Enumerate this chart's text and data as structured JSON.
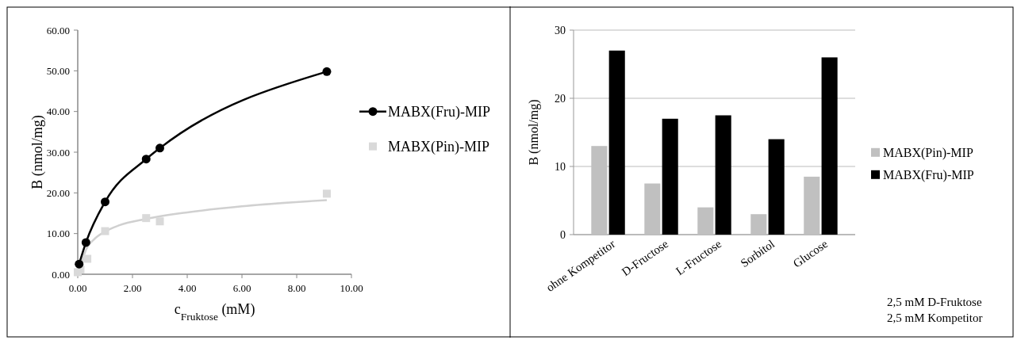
{
  "chart_data": [
    {
      "type": "scatter",
      "xlabel": "c$_{Fruktose}$ (mM)",
      "ylabel": "B (nmol/mg)",
      "xlim": [
        0,
        10
      ],
      "xticks": [
        {
          "value": 0,
          "label": "0.00"
        },
        {
          "value": 2,
          "label": "2.00"
        },
        {
          "value": 4,
          "label": "4.00"
        },
        {
          "value": 6,
          "label": "6.00"
        },
        {
          "value": 8,
          "label": "8.00"
        },
        {
          "value": 10,
          "label": "10.00"
        }
      ],
      "ylim": [
        0,
        60
      ],
      "yticks": [
        {
          "value": 0,
          "label": "0.00"
        },
        {
          "value": 10,
          "label": "10.00"
        },
        {
          "value": 20,
          "label": "20.00"
        },
        {
          "value": 30,
          "label": "30.00"
        },
        {
          "value": 40,
          "label": "40.00"
        },
        {
          "value": 50,
          "label": "50.00"
        },
        {
          "value": 60,
          "label": "60.00"
        }
      ],
      "grid": false,
      "legend": "right",
      "series": [
        {
          "name": "MABX(Fru)-MIP",
          "type": "line",
          "marker": "circle",
          "color": "#000000",
          "x": [
            0.05,
            0.3,
            1.0,
            2.5,
            3.0,
            9.1
          ],
          "values": [
            2.5,
            7.8,
            17.8,
            28.3,
            31.0,
            49.8
          ]
        },
        {
          "name": "MABX(Pin)-MIP",
          "type": "scatter",
          "marker": "square",
          "color": "#d9d9d9",
          "x": [
            0,
            0.1,
            0.35,
            1.0,
            2.5,
            3.0,
            9.1
          ],
          "values": [
            0.5,
            1.2,
            3.8,
            10.6,
            13.8,
            13.0,
            19.8
          ]
        },
        {
          "type": "line",
          "marker": "none",
          "color": "#d0d0d0",
          "x": [
            0.05,
            0.15,
            0.3,
            0.6,
            1.0,
            1.5,
            2.5,
            4.0,
            6.0,
            9.1
          ],
          "values": [
            0.2,
            3.0,
            6.0,
            8.6,
            10.5,
            12.0,
            13.6,
            15.2,
            16.7,
            18.2
          ]
        }
      ]
    },
    {
      "type": "bar",
      "ylabel": "B (nmol/mg)",
      "categories": [
        "ohne Kompetitor",
        "D-Fructose",
        "L-Fructose",
        "Sorbitol",
        "Glucose"
      ],
      "ylim": [
        0,
        30
      ],
      "yticks": [
        0,
        10,
        20,
        30
      ],
      "grid": "y",
      "legend": "right",
      "annotations": [
        "2,5 mM D-Fruktose",
        "2,5 mM Kompetitor"
      ],
      "series": [
        {
          "name": "MABX(Pin)-MIP",
          "color": "#c0c0c0",
          "values": [
            13,
            7.5,
            4,
            3,
            8.5
          ]
        },
        {
          "name": "MABX(Fru)-MIP",
          "color": "#000000",
          "values": [
            27,
            17,
            17.5,
            14,
            26
          ]
        }
      ]
    }
  ]
}
